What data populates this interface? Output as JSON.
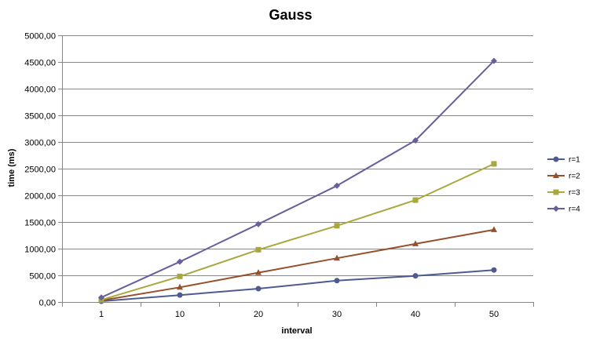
{
  "chart_data": {
    "type": "line",
    "title": "Gauss",
    "xlabel": "interval",
    "ylabel": "time (ms)",
    "categories": [
      "1",
      "10",
      "20",
      "30",
      "40",
      "50"
    ],
    "ylim": [
      0,
      5000
    ],
    "ytick_step": 500,
    "ytick_labels": [
      "0,00",
      "500,00",
      "1000,00",
      "1500,00",
      "2000,00",
      "2500,00",
      "3000,00",
      "3500,00",
      "4000,00",
      "4500,00",
      "5000,00"
    ],
    "grid": true,
    "legend_position": "right",
    "series": [
      {
        "name": "r=1",
        "color": "#4F5B8F",
        "marker": "circle",
        "values": [
          15,
          130,
          250,
          400,
          490,
          600
        ]
      },
      {
        "name": "r=2",
        "color": "#94512E",
        "marker": "triangle",
        "values": [
          30,
          275,
          550,
          820,
          1090,
          1355
        ]
      },
      {
        "name": "r=3",
        "color": "#A8A83C",
        "marker": "square",
        "values": [
          40,
          480,
          980,
          1430,
          1910,
          2590
        ]
      },
      {
        "name": "r=4",
        "color": "#675F9C",
        "marker": "diamond",
        "values": [
          85,
          755,
          1460,
          2180,
          3030,
          4520
        ]
      }
    ]
  }
}
